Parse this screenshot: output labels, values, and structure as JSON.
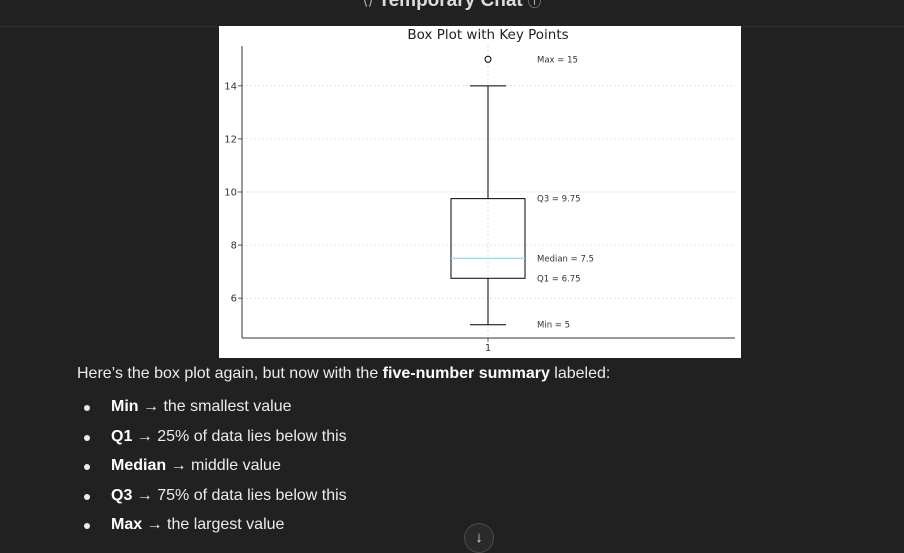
{
  "header": {
    "title": "Temporary Chat",
    "icon_left": "temporary-chat-icon",
    "icon_right": "info-icon"
  },
  "chart_data": {
    "type": "box",
    "title": "Box Plot with Key Points",
    "xlabel": "",
    "ylabel": "",
    "categories": [
      "1"
    ],
    "box": {
      "min": 5,
      "q1": 6.75,
      "median": 7.5,
      "q3": 9.75,
      "whisker_high": 14,
      "outliers": [
        15
      ]
    },
    "annotations": [
      {
        "text": "Max = 15",
        "y": 15
      },
      {
        "text": "Q3 = 9.75",
        "y": 9.75
      },
      {
        "text": "Median = 7.5",
        "y": 7.5
      },
      {
        "text": "Q1 = 6.75",
        "y": 6.75
      },
      {
        "text": "Min = 5",
        "y": 5
      }
    ],
    "yticks": [
      6,
      8,
      10,
      12,
      14
    ],
    "ylim": [
      4.5,
      15.5
    ],
    "grid": true,
    "colors": {
      "median": "#add8e6",
      "box": "#000000",
      "grid": "#d9d9d9"
    }
  },
  "message": {
    "intro_before": "Here’s the box plot again, but now with the ",
    "intro_bold": "five-number summary",
    "intro_after": " labeled:",
    "items": [
      {
        "term": "Min",
        "desc": " → the smallest value"
      },
      {
        "term": "Q1",
        "desc": " → 25% of data lies below this"
      },
      {
        "term": "Median",
        "desc": " → middle value"
      },
      {
        "term": "Q3",
        "desc": " → 75% of data lies below this"
      },
      {
        "term": "Max",
        "desc": " → the largest value"
      }
    ]
  },
  "scroll_button": {
    "icon": "arrow-down-icon",
    "glyph": "↓"
  }
}
